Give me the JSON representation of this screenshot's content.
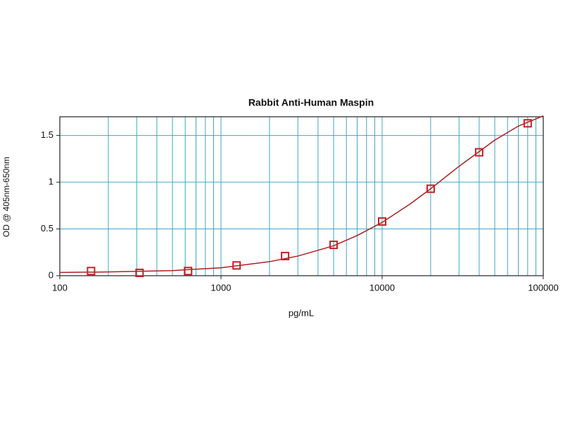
{
  "chart_data": {
    "type": "line",
    "title": "Rabbit Anti-Human Maspin",
    "x_label": "pg/mL",
    "y_label": "OD @ 405nm-650nm",
    "x_scale": "log",
    "xlim": [
      100,
      100000
    ],
    "xticks": [
      100,
      1000,
      10000,
      100000
    ],
    "x_minor_grid": [
      200,
      300,
      400,
      500,
      600,
      700,
      800,
      900,
      2000,
      3000,
      4000,
      5000,
      6000,
      7000,
      8000,
      9000,
      20000,
      30000,
      40000,
      50000,
      60000,
      70000,
      80000,
      90000
    ],
    "ylim": [
      0,
      1.7
    ],
    "yticks": [
      0,
      0.5,
      1,
      1.5
    ],
    "grid": true,
    "grid_color": "#3ea8c6",
    "series": [
      {
        "color": "#c42026",
        "marker": "square",
        "x": [
          156.25,
          312.5,
          625,
          1250,
          2500,
          5000,
          10000,
          20000,
          40000,
          80000
        ],
        "values": [
          0.05,
          0.03,
          0.05,
          0.11,
          0.21,
          0.33,
          0.58,
          0.93,
          1.32,
          1.63
        ]
      },
      {
        "color": "#b01e22",
        "marker": "none",
        "x": [
          100,
          200,
          500,
          1000,
          2000,
          3000,
          5000,
          7000,
          10000,
          15000,
          20000,
          30000,
          50000,
          70000,
          100000
        ],
        "values": [
          0.035,
          0.04,
          0.055,
          0.085,
          0.15,
          0.21,
          0.32,
          0.43,
          0.57,
          0.77,
          0.93,
          1.17,
          1.45,
          1.6,
          1.71
        ]
      }
    ]
  }
}
